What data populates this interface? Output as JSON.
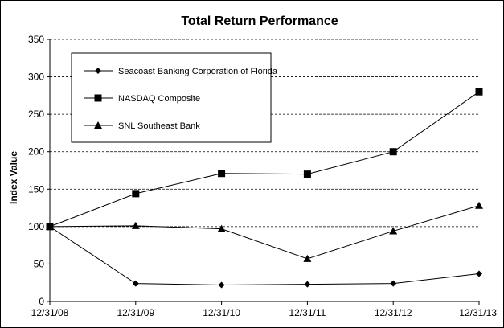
{
  "chart_data": {
    "type": "line",
    "title": "Total Return Performance",
    "xlabel": "",
    "ylabel": "Index Value",
    "categories": [
      "12/31/08",
      "12/31/09",
      "12/31/10",
      "12/31/11",
      "12/31/12",
      "12/31/13"
    ],
    "ylim": [
      0,
      350
    ],
    "yticks": [
      0,
      50,
      100,
      150,
      200,
      250,
      300,
      350
    ],
    "grid": true,
    "legend_position": "top-left",
    "series": [
      {
        "name": "Seacoast Banking Corporation of Florida",
        "marker": "diamond",
        "values": [
          100,
          24,
          22,
          23,
          24,
          37
        ]
      },
      {
        "name": "NASDAQ Composite",
        "marker": "square",
        "values": [
          100,
          144,
          171,
          170,
          200,
          280
        ]
      },
      {
        "name": "SNL Southeast Bank",
        "marker": "triangle",
        "values": [
          100,
          101,
          97,
          57,
          94,
          128
        ]
      }
    ],
    "colors": {
      "line": "#000000",
      "grid": "#000000",
      "background": "#ffffff"
    }
  }
}
